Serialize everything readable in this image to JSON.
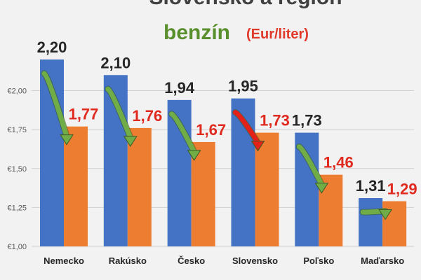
{
  "chart_data": {
    "type": "bar",
    "title": "Slovensko a región",
    "subtitle": "benzín",
    "subtitle_unit": "(Eur/liter)",
    "categories": [
      "Nemecko",
      "Rakúsko",
      "Česko",
      "Slovensko",
      "Poľsko",
      "Maďarsko"
    ],
    "series": [
      {
        "values": [
          2.2,
          2.1,
          1.94,
          1.95,
          1.73,
          1.31
        ],
        "color": "#4472c4"
      },
      {
        "values": [
          1.77,
          1.76,
          1.67,
          1.73,
          1.46,
          1.29
        ],
        "color": "#ed7d31"
      }
    ],
    "series_a_labels": [
      "2,20",
      "2,10",
      "1,94",
      "1,95",
      "1,73",
      "1,31"
    ],
    "series_b_labels": [
      "1,77",
      "1,76",
      "1,67",
      "1,73",
      "1,46",
      "1,29"
    ],
    "y_ticks": [
      1.0,
      1.25,
      1.5,
      1.75,
      2.0
    ],
    "y_tick_labels": [
      "€1,00",
      "€1,25",
      "€1,50",
      "€1,75",
      "€2,00"
    ],
    "ylim": [
      1.0,
      2.2
    ],
    "grid": true,
    "arrows": {
      "colors": [
        "green",
        "green",
        "green",
        "red",
        "green",
        "green"
      ],
      "palette": {
        "green": "#70ad47",
        "red": "#e32119"
      }
    }
  }
}
